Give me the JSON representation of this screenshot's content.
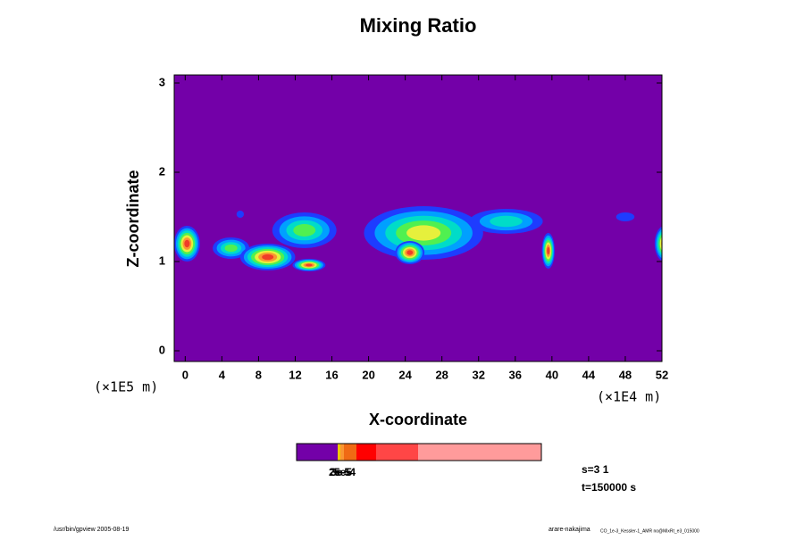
{
  "chart_data": {
    "type": "contour",
    "title": "Mixing Ratio",
    "x_label": "X-coordinate",
    "y_label": "Z-coordinate",
    "x_unit": "(×1E4 m)",
    "y_unit": "(×1E5 m)",
    "xlim": [
      -1.2,
      52
    ],
    "ylim": [
      -0.12,
      3.09
    ],
    "xticks": [
      0,
      4,
      8,
      12,
      16,
      20,
      24,
      28,
      32,
      36,
      40,
      44,
      48,
      52
    ],
    "yticks": [
      0,
      1,
      2,
      3
    ],
    "level_colors": [
      "#7300a8",
      "#1e3cff",
      "#00a0ff",
      "#00dcc8",
      "#50f050",
      "#e6f03c",
      "#fa9632",
      "#f03c28"
    ],
    "features": [
      {
        "x": 0.2,
        "z": 1.2,
        "rx": 1.4,
        "rz": 0.2,
        "peak": 7
      },
      {
        "x": 5,
        "z": 1.15,
        "rx": 2,
        "rz": 0.12,
        "peak": 4
      },
      {
        "x": 9,
        "z": 1.05,
        "rx": 3,
        "rz": 0.15,
        "peak": 7
      },
      {
        "x": 13,
        "z": 1.35,
        "rx": 3.5,
        "rz": 0.2,
        "peak": 4
      },
      {
        "x": 13.5,
        "z": 0.96,
        "rx": 1.8,
        "rz": 0.07,
        "peak": 7
      },
      {
        "x": 6,
        "z": 1.53,
        "rx": 0.4,
        "rz": 0.04,
        "peak": 1
      },
      {
        "x": 26,
        "z": 1.32,
        "rx": 6.5,
        "rz": 0.3,
        "peak": 5
      },
      {
        "x": 24.5,
        "z": 1.1,
        "rx": 1.6,
        "rz": 0.13,
        "peak": 7
      },
      {
        "x": 35,
        "z": 1.45,
        "rx": 4,
        "rz": 0.14,
        "peak": 3
      },
      {
        "x": 39.6,
        "z": 1.12,
        "rx": 0.7,
        "rz": 0.2,
        "peak": 7
      },
      {
        "x": 48,
        "z": 1.5,
        "rx": 1,
        "rz": 0.05,
        "peak": 1
      },
      {
        "x": 52.3,
        "z": 1.2,
        "rx": 1.1,
        "rz": 0.2,
        "peak": 7
      }
    ],
    "colorbar": {
      "colors": [
        "#7300a8",
        "#f0c800",
        "#fa9632",
        "#f06a14",
        "#ff0000",
        "#ff4646",
        "#ff9b9b"
      ],
      "labels": [
        "2e-5",
        "3e-5",
        "5e-4"
      ]
    },
    "notes": [
      "s=3 1",
      "t=150000 s"
    ],
    "footer_left": "/usr/bin/gpview 2005-08-19",
    "footer_right": "arare-nakajima",
    "footer_right_small": "CO_1e-3_Kessler-1_AMR no@MixRt_e3_015000"
  }
}
